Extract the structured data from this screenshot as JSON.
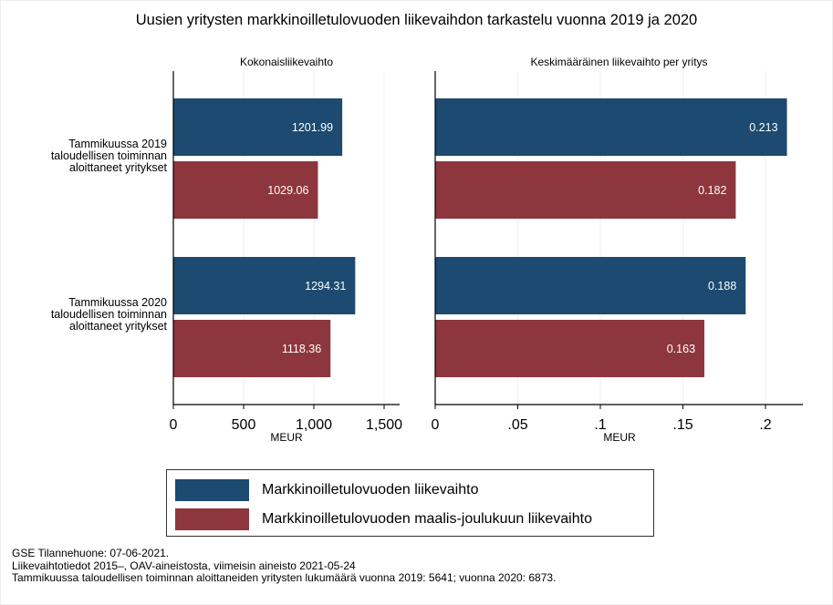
{
  "chart_data": [
    {
      "type": "bar",
      "orientation": "horizontal",
      "title": "Kokonaisliikevaihto",
      "xlabel": "MEUR",
      "xlim": [
        0,
        1600
      ],
      "x_ticks": [
        0,
        500,
        1000,
        1500
      ],
      "x_tick_labels": [
        "0",
        "500",
        "1,000",
        "1,500"
      ],
      "grid": true,
      "categories": [
        [
          "Tammikuussa 2019",
          "taloudellisen toiminnan",
          "aloittaneet yritykset"
        ],
        [
          "Tammikuussa 2020",
          "taloudellisen toiminnan",
          "aloittaneet yritykset"
        ]
      ],
      "series": [
        {
          "name": "Markkinoilletulovuoden liikevaihto",
          "values": [
            1201.99,
            1294.31
          ],
          "labels": [
            "1201.99",
            "1294.31"
          ]
        },
        {
          "name": "Markkinoilletulovuoden maalis-joulukuun liikevaihto",
          "values": [
            1029.06,
            1118.36
          ],
          "labels": [
            "1029.06",
            "1118.36"
          ]
        }
      ]
    },
    {
      "type": "bar",
      "orientation": "horizontal",
      "title": "Keskimääräinen liikevaihto per yritys",
      "xlabel": "MEUR",
      "xlim": [
        0,
        0.222
      ],
      "x_ticks": [
        0,
        0.05,
        0.1,
        0.15,
        0.2
      ],
      "x_tick_labels": [
        "0",
        ".05",
        ".1",
        ".15",
        ".2"
      ],
      "grid": true,
      "series": [
        {
          "name": "Markkinoilletulovuoden liikevaihto",
          "values": [
            0.213,
            0.188
          ],
          "labels": [
            "0.213",
            "0.188"
          ]
        },
        {
          "name": "Markkinoilletulovuoden maalis-joulukuun liikevaihto",
          "values": [
            0.182,
            0.163
          ],
          "labels": [
            "0.182",
            "0.163"
          ]
        }
      ]
    }
  ],
  "title": "Uusien yritysten markkinoilletulovuoden liikevaihdon tarkastelu vuonna 2019 ja 2020",
  "legend": {
    "placement": "bottom",
    "items": [
      {
        "label": "Markkinoilletulovuoden liikevaihto",
        "color": "#1c4a70"
      },
      {
        "label": "Markkinoilletulovuoden maalis-joulukuun liikevaihto",
        "color": "#8e363e"
      }
    ]
  },
  "footnotes": [
    "GSE Tilannehuone: 07-06-2021.",
    "Liikevaihtotiedot 2015–, OAV-aineistosta, viimeisin aineisto 2021-05-24",
    "Tammikuussa taloudellisen toiminnan aloittaneiden yritysten lukumäärä vuonna 2019: 5641; vuonna 2020: 6873."
  ]
}
